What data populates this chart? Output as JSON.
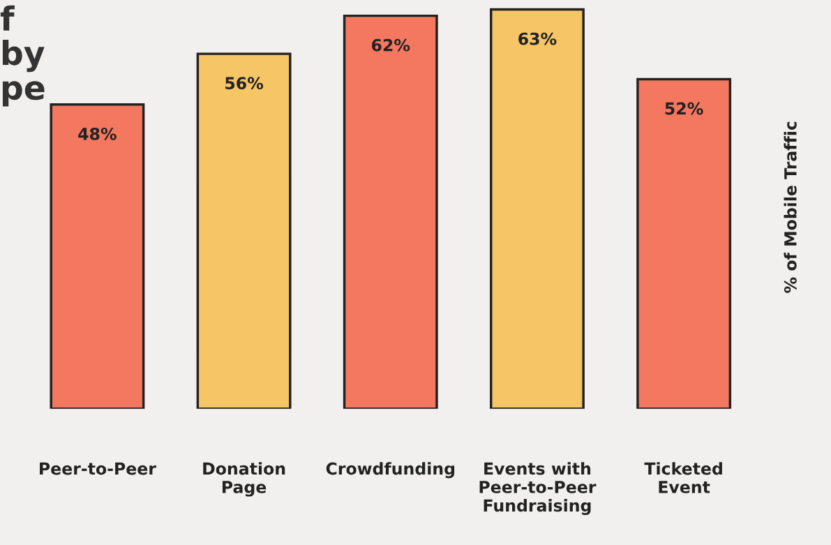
{
  "chart_data": {
    "type": "bar",
    "title": "f\nby\npe",
    "ylabel": "% of Mobile Traffic",
    "categories": [
      "Peer-to-Peer",
      "Donation\nPage",
      "Crowdfunding",
      "Events with\nPeer-to-Peer\nFundraising",
      "Ticketed\nEvent"
    ],
    "values": [
      48,
      56,
      62,
      63,
      52
    ],
    "colors": [
      "#f47860",
      "#f5c566",
      "#f47860",
      "#f5c566",
      "#f47860"
    ],
    "value_labels": [
      "48%",
      "56%",
      "62%",
      "63%",
      "52%"
    ],
    "grid": false,
    "legend": false
  }
}
